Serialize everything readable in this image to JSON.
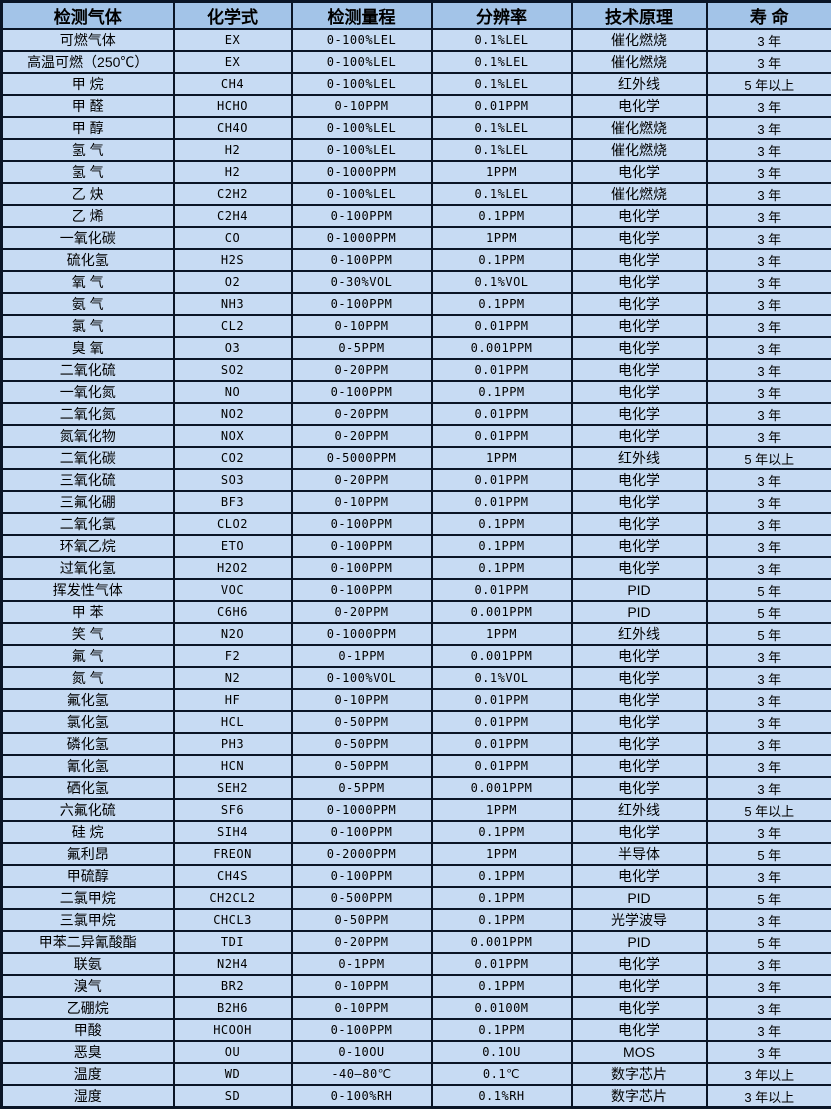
{
  "table": {
    "title": "gas-detector-specifications",
    "colors": {
      "header_bg": "#a3c4e8",
      "row_bg": "#c7dbf3",
      "border": "#0a1526",
      "text": "#000000"
    },
    "columns": [
      "检测气体",
      "化学式",
      "检测量程",
      "分辨率",
      "技术原理",
      "寿 命"
    ],
    "rows": [
      [
        "可燃气体",
        "EX",
        "0-100%LEL",
        "0.1%LEL",
        "催化燃烧",
        "3 年"
      ],
      [
        "高温可燃（250℃）",
        "EX",
        "0-100%LEL",
        "0.1%LEL",
        "催化燃烧",
        "3 年"
      ],
      [
        "甲 烷",
        "CH4",
        "0-100%LEL",
        "0.1%LEL",
        "红外线",
        "5 年以上"
      ],
      [
        "甲 醛",
        "HCHO",
        "0-10PPM",
        "0.01PPM",
        "电化学",
        "3 年"
      ],
      [
        "甲 醇",
        "CH4O",
        "0-100%LEL",
        "0.1%LEL",
        "催化燃烧",
        "3 年"
      ],
      [
        "氢 气",
        "H2",
        "0-100%LEL",
        "0.1%LEL",
        "催化燃烧",
        "3 年"
      ],
      [
        "氢 气",
        "H2",
        "0-1000PPM",
        "1PPM",
        "电化学",
        "3 年"
      ],
      [
        "乙 炔",
        "C2H2",
        "0-100%LEL",
        "0.1%LEL",
        "催化燃烧",
        "3 年"
      ],
      [
        "乙 烯",
        "C2H4",
        "0-100PPM",
        "0.1PPM",
        "电化学",
        "3 年"
      ],
      [
        "一氧化碳",
        "CO",
        "0-1000PPM",
        "1PPM",
        "电化学",
        "3 年"
      ],
      [
        "硫化氢",
        "H2S",
        "0-100PPM",
        "0.1PPM",
        "电化学",
        "3 年"
      ],
      [
        "氧 气",
        "O2",
        "0-30%VOL",
        "0.1%VOL",
        "电化学",
        "3 年"
      ],
      [
        "氨 气",
        "NH3",
        "0-100PPM",
        "0.1PPM",
        "电化学",
        "3 年"
      ],
      [
        "氯 气",
        "CL2",
        "0-10PPM",
        "0.01PPM",
        "电化学",
        "3 年"
      ],
      [
        "臭 氧",
        "O3",
        "0-5PPM",
        "0.001PPM",
        "电化学",
        "3 年"
      ],
      [
        "二氧化硫",
        "SO2",
        "0-20PPM",
        "0.01PPM",
        "电化学",
        "3 年"
      ],
      [
        "一氧化氮",
        "NO",
        "0-100PPM",
        "0.1PPM",
        "电化学",
        "3 年"
      ],
      [
        "二氧化氮",
        "NO2",
        "0-20PPM",
        "0.01PPM",
        "电化学",
        "3 年"
      ],
      [
        "氮氧化物",
        "NOX",
        "0-20PPM",
        "0.01PPM",
        "电化学",
        "3 年"
      ],
      [
        "二氧化碳",
        "CO2",
        "0-5000PPM",
        "1PPM",
        "红外线",
        "5 年以上"
      ],
      [
        "三氧化硫",
        "SO3",
        "0-20PPM",
        "0.01PPM",
        "电化学",
        "3 年"
      ],
      [
        "三氟化硼",
        "BF3",
        "0-10PPM",
        "0.01PPM",
        "电化学",
        "3 年"
      ],
      [
        "二氧化氯",
        "CLO2",
        "0-100PPM",
        "0.1PPM",
        "电化学",
        "3 年"
      ],
      [
        "环氧乙烷",
        "ETO",
        "0-100PPM",
        "0.1PPM",
        "电化学",
        "3 年"
      ],
      [
        "过氧化氢",
        "H2O2",
        "0-100PPM",
        "0.1PPM",
        "电化学",
        "3 年"
      ],
      [
        "挥发性气体",
        "VOC",
        "0-100PPM",
        "0.01PPM",
        "PID",
        "5 年"
      ],
      [
        "甲 苯",
        "C6H6",
        "0-20PPM",
        "0.001PPM",
        "PID",
        "5 年"
      ],
      [
        "笑 气",
        "N2O",
        "0-1000PPM",
        "1PPM",
        "红外线",
        "5 年"
      ],
      [
        "氟 气",
        "F2",
        "0-1PPM",
        "0.001PPM",
        "电化学",
        "3 年"
      ],
      [
        "氮 气",
        "N2",
        "0-100%VOL",
        "0.1%VOL",
        "电化学",
        "3 年"
      ],
      [
        "氟化氢",
        "HF",
        "0-10PPM",
        "0.01PPM",
        "电化学",
        "3 年"
      ],
      [
        "氯化氢",
        "HCL",
        "0-50PPM",
        "0.01PPM",
        "电化学",
        "3 年"
      ],
      [
        "磷化氢",
        "PH3",
        "0-50PPM",
        "0.01PPM",
        "电化学",
        "3 年"
      ],
      [
        "氰化氢",
        "HCN",
        "0-50PPM",
        "0.01PPM",
        "电化学",
        "3 年"
      ],
      [
        "硒化氢",
        "SEH2",
        "0-5PPM",
        "0.001PPM",
        "电化学",
        "3 年"
      ],
      [
        "六氟化硫",
        "SF6",
        "0-1000PPM",
        "1PPM",
        "红外线",
        "5 年以上"
      ],
      [
        "硅 烷",
        "SIH4",
        "0-100PPM",
        "0.1PPM",
        "电化学",
        "3 年"
      ],
      [
        "氟利昂",
        "FREON",
        "0-2000PPM",
        "1PPM",
        "半导体",
        "5 年"
      ],
      [
        "甲硫醇",
        "CH4S",
        "0-100PPM",
        "0.1PPM",
        "电化学",
        "3 年"
      ],
      [
        "二氯甲烷",
        "CH2CL2",
        "0-500PPM",
        "0.1PPM",
        "PID",
        "5 年"
      ],
      [
        "三氯甲烷",
        "CHCL3",
        "0-50PPM",
        "0.1PPM",
        "光学波导",
        "3 年"
      ],
      [
        "甲苯二异氰酸酯",
        "TDI",
        "0-20PPM",
        "0.001PPM",
        "PID",
        "5 年"
      ],
      [
        "联氨",
        "N2H4",
        "0-1PPM",
        "0.01PPM",
        "电化学",
        "3 年"
      ],
      [
        "溴气",
        "BR2",
        "0-10PPM",
        "0.1PPM",
        "电化学",
        "3 年"
      ],
      [
        "乙硼烷",
        "B2H6",
        "0-10PPM",
        "0.0100M",
        "电化学",
        "3 年"
      ],
      [
        "甲酸",
        "HCOOH",
        "0-100PPM",
        "0.1PPM",
        "电化学",
        "3 年"
      ],
      [
        "恶臭",
        "OU",
        "0-10OU",
        "0.1OU",
        "MOS",
        "3 年"
      ],
      [
        "温度",
        "WD",
        "-40—80℃",
        "0.1℃",
        "数字芯片",
        "3 年以上"
      ],
      [
        "湿度",
        "SD",
        "0-100%RH",
        "0.1%RH",
        "数字芯片",
        "3 年以上"
      ]
    ]
  }
}
